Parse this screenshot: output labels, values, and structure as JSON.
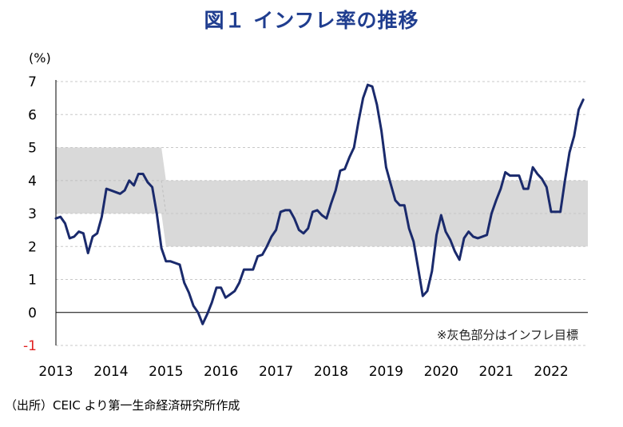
{
  "title": "図１ インフレ率の推移",
  "source": "（出所）CEIC より第一生命経済研究所作成",
  "chart_data": {
    "type": "line",
    "ylabel": "(%)",
    "ylim": [
      -1,
      7
    ],
    "yticks": [
      "7",
      "6",
      "5",
      "4",
      "3",
      "2",
      "1",
      "0",
      "-1"
    ],
    "xlim": [
      2013.0,
      2022.667
    ],
    "xticks": [
      "2013",
      "2014",
      "2015",
      "2016",
      "2017",
      "2018",
      "2019",
      "2020",
      "2021",
      "2022"
    ],
    "annotation": "※灰色部分はインフレ目標",
    "target_band": [
      {
        "x": 2013.0,
        "low": 3,
        "high": 5
      },
      {
        "x": 2014.917,
        "low": 3,
        "high": 5
      },
      {
        "x": 2015.0,
        "low": 2,
        "high": 4
      },
      {
        "x": 2022.667,
        "low": 2,
        "high": 4
      }
    ],
    "target_midline": [
      {
        "x": 2013.0,
        "y": 4
      },
      {
        "x": 2014.917,
        "y": 4
      },
      {
        "x": 2015.0,
        "y": 3
      },
      {
        "x": 2022.667,
        "y": 3
      }
    ],
    "series": [
      {
        "name": "インフレ率",
        "color": "#1a2a6c",
        "points": [
          [
            2013.0,
            2.85
          ],
          [
            2013.083,
            2.9
          ],
          [
            2013.167,
            2.7
          ],
          [
            2013.25,
            2.25
          ],
          [
            2013.333,
            2.3
          ],
          [
            2013.417,
            2.45
          ],
          [
            2013.5,
            2.4
          ],
          [
            2013.583,
            1.8
          ],
          [
            2013.667,
            2.3
          ],
          [
            2013.75,
            2.4
          ],
          [
            2013.833,
            2.9
          ],
          [
            2013.917,
            3.75
          ],
          [
            2014.0,
            3.7
          ],
          [
            2014.083,
            3.65
          ],
          [
            2014.167,
            3.6
          ],
          [
            2014.25,
            3.7
          ],
          [
            2014.333,
            4.0
          ],
          [
            2014.417,
            3.85
          ],
          [
            2014.5,
            4.2
          ],
          [
            2014.583,
            4.2
          ],
          [
            2014.667,
            3.95
          ],
          [
            2014.75,
            3.8
          ],
          [
            2014.833,
            3.0
          ],
          [
            2014.917,
            1.95
          ],
          [
            2015.0,
            1.55
          ],
          [
            2015.083,
            1.55
          ],
          [
            2015.167,
            1.5
          ],
          [
            2015.25,
            1.45
          ],
          [
            2015.333,
            0.9
          ],
          [
            2015.417,
            0.6
          ],
          [
            2015.5,
            0.2
          ],
          [
            2015.583,
            0.0
          ],
          [
            2015.667,
            -0.35
          ],
          [
            2015.75,
            -0.05
          ],
          [
            2015.833,
            0.3
          ],
          [
            2015.917,
            0.75
          ],
          [
            2016.0,
            0.75
          ],
          [
            2016.083,
            0.45
          ],
          [
            2016.167,
            0.55
          ],
          [
            2016.25,
            0.65
          ],
          [
            2016.333,
            0.9
          ],
          [
            2016.417,
            1.3
          ],
          [
            2016.5,
            1.3
          ],
          [
            2016.583,
            1.3
          ],
          [
            2016.667,
            1.7
          ],
          [
            2016.75,
            1.75
          ],
          [
            2016.833,
            2.0
          ],
          [
            2016.917,
            2.3
          ],
          [
            2017.0,
            2.5
          ],
          [
            2017.083,
            3.05
          ],
          [
            2017.167,
            3.1
          ],
          [
            2017.25,
            3.1
          ],
          [
            2017.333,
            2.85
          ],
          [
            2017.417,
            2.5
          ],
          [
            2017.5,
            2.4
          ],
          [
            2017.583,
            2.55
          ],
          [
            2017.667,
            3.05
          ],
          [
            2017.75,
            3.1
          ],
          [
            2017.833,
            2.95
          ],
          [
            2017.917,
            2.85
          ],
          [
            2018.0,
            3.3
          ],
          [
            2018.083,
            3.7
          ],
          [
            2018.167,
            4.3
          ],
          [
            2018.25,
            4.35
          ],
          [
            2018.333,
            4.7
          ],
          [
            2018.417,
            5.0
          ],
          [
            2018.5,
            5.8
          ],
          [
            2018.583,
            6.5
          ],
          [
            2018.667,
            6.9
          ],
          [
            2018.75,
            6.85
          ],
          [
            2018.833,
            6.3
          ],
          [
            2018.917,
            5.5
          ],
          [
            2019.0,
            4.4
          ],
          [
            2019.083,
            3.9
          ],
          [
            2019.167,
            3.4
          ],
          [
            2019.25,
            3.25
          ],
          [
            2019.333,
            3.25
          ],
          [
            2019.417,
            2.55
          ],
          [
            2019.5,
            2.15
          ],
          [
            2019.583,
            1.35
          ],
          [
            2019.667,
            0.5
          ],
          [
            2019.75,
            0.65
          ],
          [
            2019.833,
            1.25
          ],
          [
            2019.917,
            2.35
          ],
          [
            2020.0,
            2.95
          ],
          [
            2020.083,
            2.45
          ],
          [
            2020.167,
            2.2
          ],
          [
            2020.25,
            1.85
          ],
          [
            2020.333,
            1.6
          ],
          [
            2020.417,
            2.25
          ],
          [
            2020.5,
            2.45
          ],
          [
            2020.583,
            2.3
          ],
          [
            2020.667,
            2.25
          ],
          [
            2020.75,
            2.3
          ],
          [
            2020.833,
            2.35
          ],
          [
            2020.917,
            3.0
          ],
          [
            2021.0,
            3.4
          ],
          [
            2021.083,
            3.75
          ],
          [
            2021.167,
            4.25
          ],
          [
            2021.25,
            4.15
          ],
          [
            2021.333,
            4.15
          ],
          [
            2021.417,
            4.15
          ],
          [
            2021.5,
            3.75
          ],
          [
            2021.583,
            3.75
          ],
          [
            2021.667,
            4.4
          ],
          [
            2021.75,
            4.2
          ],
          [
            2021.833,
            4.05
          ],
          [
            2021.917,
            3.8
          ],
          [
            2022.0,
            3.05
          ],
          [
            2022.083,
            3.05
          ],
          [
            2022.167,
            3.05
          ],
          [
            2022.25,
            4.0
          ],
          [
            2022.333,
            4.85
          ],
          [
            2022.417,
            5.35
          ],
          [
            2022.5,
            6.15
          ],
          [
            2022.583,
            6.45
          ]
        ]
      }
    ]
  }
}
